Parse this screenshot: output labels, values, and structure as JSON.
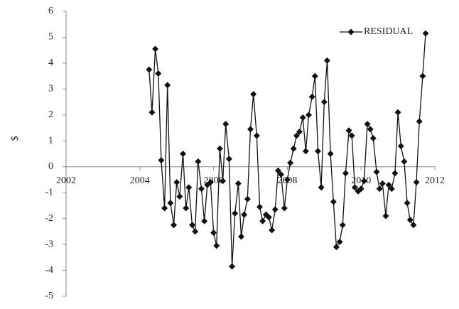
{
  "chart_data": {
    "type": "line",
    "y_label": "$",
    "xlim": [
      2002,
      2012
    ],
    "xticks": [
      2002,
      2004,
      2006,
      2008,
      2010,
      2012
    ],
    "ylim": [
      -5,
      6
    ],
    "yticks": [
      -5,
      -4,
      -3,
      -2,
      -1,
      0,
      1,
      2,
      3,
      4,
      5,
      6
    ],
    "legend": "top-right",
    "x": [
      2004.25,
      2004.33,
      2004.42,
      2004.5,
      2004.58,
      2004.67,
      2004.75,
      2004.83,
      2004.92,
      2005.0,
      2005.08,
      2005.17,
      2005.25,
      2005.33,
      2005.42,
      2005.5,
      2005.58,
      2005.67,
      2005.75,
      2005.83,
      2005.92,
      2006.0,
      2006.08,
      2006.17,
      2006.25,
      2006.33,
      2006.42,
      2006.5,
      2006.58,
      2006.67,
      2006.75,
      2006.83,
      2006.92,
      2007.0,
      2007.08,
      2007.17,
      2007.25,
      2007.33,
      2007.42,
      2007.5,
      2007.58,
      2007.67,
      2007.75,
      2007.83,
      2007.92,
      2008.0,
      2008.08,
      2008.17,
      2008.25,
      2008.33,
      2008.42,
      2008.5,
      2008.58,
      2008.67,
      2008.75,
      2008.83,
      2008.92,
      2009.0,
      2009.08,
      2009.17,
      2009.25,
      2009.33,
      2009.42,
      2009.5,
      2009.58,
      2009.67,
      2009.75,
      2009.83,
      2009.92,
      2010.0,
      2010.08,
      2010.17,
      2010.25,
      2010.33,
      2010.42,
      2010.5,
      2010.58,
      2010.67,
      2010.75,
      2010.83,
      2010.92,
      2011.0,
      2011.08,
      2011.17,
      2011.25,
      2011.33,
      2011.42,
      2011.5,
      2011.58,
      2011.67,
      2011.75
    ],
    "series": [
      {
        "name": "RESIDUAL",
        "color": "#111111",
        "values": [
          3.75,
          2.1,
          4.55,
          3.6,
          0.25,
          -1.6,
          3.15,
          -1.4,
          -2.25,
          -0.6,
          -1.15,
          0.5,
          -1.6,
          -0.8,
          -2.25,
          -2.5,
          0.2,
          -0.85,
          -2.1,
          -0.7,
          -0.6,
          -2.55,
          -3.05,
          0.7,
          -0.55,
          1.65,
          0.3,
          -3.85,
          -1.8,
          -0.65,
          -2.7,
          -1.85,
          -1.25,
          1.45,
          2.8,
          1.2,
          -1.55,
          -2.1,
          -1.85,
          -1.95,
          -2.45,
          -1.65,
          -0.15,
          -0.3,
          -1.6,
          -0.5,
          0.15,
          0.7,
          1.2,
          1.35,
          1.9,
          0.6,
          2.0,
          2.7,
          3.5,
          0.6,
          -0.8,
          2.5,
          4.1,
          0.5,
          -1.35,
          -3.1,
          -2.9,
          -2.25,
          -0.25,
          1.4,
          1.2,
          -0.8,
          -0.95,
          -0.85,
          -0.55,
          1.65,
          1.45,
          1.1,
          -0.2,
          -0.85,
          -0.65,
          -1.9,
          -0.7,
          -0.85,
          -0.25,
          2.1,
          0.8,
          0.2,
          -1.4,
          -2.05,
          -2.25,
          -0.6,
          1.75,
          3.5,
          5.15
        ]
      }
    ]
  }
}
